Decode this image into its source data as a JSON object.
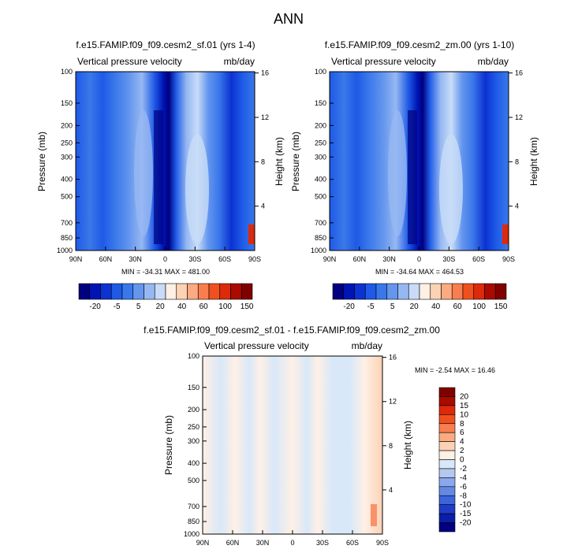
{
  "figure_title": "ANN",
  "chart_data": [
    {
      "type": "heatmap",
      "title": "f.e15.FAMIP.f09_f09.cesm2_sf.01 (yrs 1-4)",
      "subtitle_left": "Vertical pressure velocity",
      "subtitle_right": "mb/day",
      "xlabel": "",
      "ylabel": "Pressure (mb)",
      "ylabel_right": "Height (km)",
      "x_ticks": [
        "90N",
        "60N",
        "30N",
        "0",
        "30S",
        "60S",
        "90S"
      ],
      "y_ticks": [
        "100",
        "150",
        "200",
        "250",
        "300",
        "400",
        "500",
        "700",
        "850",
        "1000"
      ],
      "y_ticks_right": [
        "16",
        "12",
        "8",
        "4"
      ],
      "y_scale": "log",
      "ylim": [
        1000,
        100
      ],
      "stats": "MIN = -34.31  MAX = 481.00",
      "colorbar": {
        "orientation": "horizontal",
        "labels": [
          "-20",
          "-5",
          "5",
          "20",
          "40",
          "60",
          "100",
          "150"
        ],
        "colors": [
          "#000080",
          "#0014b4",
          "#0c32d2",
          "#1e5ae6",
          "#3a78ea",
          "#6496ee",
          "#96b8f2",
          "#c8dcf8",
          "#fff0e6",
          "#fcd2b4",
          "#fcaa82",
          "#f87e50",
          "#f0501e",
          "#dc2a0a",
          "#aa0a00",
          "#800000"
        ]
      }
    },
    {
      "type": "heatmap",
      "title": "f.e15.FAMIP.f09_f09.cesm2_zm.00 (yrs 1-10)",
      "subtitle_left": "Vertical pressure velocity",
      "subtitle_right": "mb/day",
      "xlabel": "",
      "ylabel": "Pressure (mb)",
      "ylabel_right": "Height (km)",
      "x_ticks": [
        "90N",
        "60N",
        "30N",
        "0",
        "30S",
        "60S",
        "90S"
      ],
      "y_ticks": [
        "100",
        "150",
        "200",
        "250",
        "300",
        "400",
        "500",
        "700",
        "850",
        "1000"
      ],
      "y_ticks_right": [
        "16",
        "12",
        "8",
        "4"
      ],
      "y_scale": "log",
      "ylim": [
        1000,
        100
      ],
      "stats": "MIN = -34.64  MAX = 464.53",
      "colorbar": {
        "orientation": "horizontal",
        "labels": [
          "-20",
          "-5",
          "5",
          "20",
          "40",
          "60",
          "100",
          "150"
        ],
        "colors": [
          "#000080",
          "#0014b4",
          "#0c32d2",
          "#1e5ae6",
          "#3a78ea",
          "#6496ee",
          "#96b8f2",
          "#c8dcf8",
          "#fff0e6",
          "#fcd2b4",
          "#fcaa82",
          "#f87e50",
          "#f0501e",
          "#dc2a0a",
          "#aa0a00",
          "#800000"
        ]
      }
    },
    {
      "type": "heatmap",
      "title": "f.e15.FAMIP.f09_f09.cesm2_sf.01 - f.e15.FAMIP.f09_f09.cesm2_zm.00",
      "subtitle_left": "Vertical pressure velocity",
      "subtitle_right": "mb/day",
      "xlabel": "",
      "ylabel": "Pressure (mb)",
      "ylabel_right": "Height (km)",
      "x_ticks": [
        "90N",
        "60N",
        "30N",
        "0",
        "30S",
        "60S",
        "90S"
      ],
      "y_ticks": [
        "100",
        "150",
        "200",
        "250",
        "300",
        "400",
        "500",
        "700",
        "850",
        "1000"
      ],
      "y_ticks_right": [
        "16",
        "12",
        "8",
        "4"
      ],
      "y_scale": "log",
      "ylim": [
        1000,
        100
      ],
      "stats": "MIN =  -2.54   MAX = 16.46",
      "colorbar": {
        "orientation": "vertical",
        "labels": [
          "20",
          "15",
          "10",
          "8",
          "6",
          "4",
          "2",
          "0",
          "-2",
          "-4",
          "-6",
          "-8",
          "-10",
          "-15",
          "-20"
        ],
        "colors": [
          "#800000",
          "#aa0a00",
          "#dc2a0a",
          "#f0501e",
          "#f87e50",
          "#fcaa82",
          "#fcd2b4",
          "#fff0e6",
          "#d8e8f8",
          "#b4c8f0",
          "#8ca8ec",
          "#6488e6",
          "#3c64dc",
          "#1e3cc8",
          "#0a1eaa",
          "#000080"
        ]
      }
    }
  ]
}
